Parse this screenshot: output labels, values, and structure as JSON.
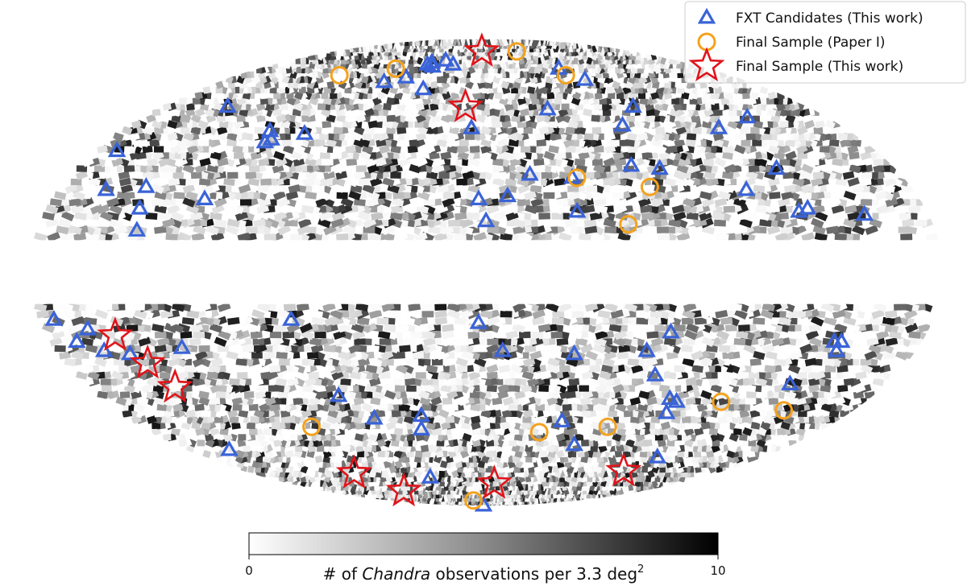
{
  "chart_data": {
    "type": "scatter",
    "projection": "Mollweide all-sky (Galactic coordinates), galactic plane |b|<10 deg masked",
    "x_axis": "Galactic longitude l (deg), 180 at left edge to -180 at right edge, 0 at center",
    "y_axis": "Galactic latitude b (deg), -90 to 90",
    "background_map": {
      "description": "grayscale HEALPix density map of Chandra observations",
      "colorbar": {
        "min": 0,
        "max": 10,
        "tick_labels": [
          "0",
          "10"
        ],
        "label_prefix": "# of ",
        "label_italic": "Chandra",
        "label_suffix": " observations per 3.3 deg",
        "label_superscript": "2",
        "colormap": "Greys"
      }
    },
    "legend": {
      "position": "top-right",
      "entries": [
        {
          "key": "fxt",
          "label": "FXT Candidates (This work)",
          "marker": "triangle",
          "color": "#3a63d8"
        },
        {
          "key": "paper1",
          "label": "Final Sample (Paper I)",
          "marker": "circle",
          "color": "#f4a21c"
        },
        {
          "key": "thiswork",
          "label": "Final Sample (This work)",
          "marker": "star",
          "color": "#e0141a"
        }
      ]
    },
    "series": [
      {
        "name": "FXT Candidates (This work)",
        "marker": "triangle",
        "color": "#3a63d8",
        "points": [
          {
            "l": 142,
            "b": 55
          },
          {
            "l": 168,
            "b": 39
          },
          {
            "l": 158,
            "b": 26
          },
          {
            "l": 142,
            "b": 27
          },
          {
            "l": 140,
            "b": 20
          },
          {
            "l": 138,
            "b": 13
          },
          {
            "l": 115,
            "b": 23
          },
          {
            "l": 105,
            "b": 46
          },
          {
            "l": 103,
            "b": 42
          },
          {
            "l": 101,
            "b": 43
          },
          {
            "l": 87,
            "b": 45
          },
          {
            "l": 67,
            "b": 65
          },
          {
            "l": 55,
            "b": 67
          },
          {
            "l": 48,
            "b": 73
          },
          {
            "l": 46,
            "b": 74
          },
          {
            "l": 42,
            "b": 72
          },
          {
            "l": 35,
            "b": 75
          },
          {
            "l": 38,
            "b": 62
          },
          {
            "l": 26,
            "b": 73
          },
          {
            "l": 6,
            "b": 47
          },
          {
            "l": 2,
            "b": 23
          },
          {
            "l": -1,
            "b": 16
          },
          {
            "l": -20,
            "b": 31
          },
          {
            "l": -10,
            "b": 24
          },
          {
            "l": -35,
            "b": 54
          },
          {
            "l": -38,
            "b": 30
          },
          {
            "l": -38,
            "b": 19
          },
          {
            "l": -60,
            "b": 71
          },
          {
            "l": -70,
            "b": 48
          },
          {
            "l": -65,
            "b": 34
          },
          {
            "l": -77,
            "b": 33
          },
          {
            "l": -70,
            "b": 66
          },
          {
            "l": -83,
            "b": 55
          },
          {
            "l": -117,
            "b": 47
          },
          {
            "l": -110,
            "b": 26
          },
          {
            "l": -128,
            "b": 19
          },
          {
            "l": -128,
            "b": 33
          },
          {
            "l": -154,
            "b": 18
          },
          {
            "l": -138,
            "b": 51
          },
          {
            "l": -132,
            "b": 20
          },
          {
            "l": 172,
            "b": -15
          },
          {
            "l": 167,
            "b": -22
          },
          {
            "l": 158,
            "b": -25
          },
          {
            "l": 148,
            "b": -26
          },
          {
            "l": 160,
            "b": -18
          },
          {
            "l": 125,
            "b": -24
          },
          {
            "l": 77,
            "b": -15
          },
          {
            "l": 67,
            "b": -40
          },
          {
            "l": 55,
            "b": -48
          },
          {
            "l": 33,
            "b": -52
          },
          {
            "l": 2,
            "b": -16
          },
          {
            "l": -8,
            "b": -25
          },
          {
            "l": 44,
            "b": -72
          },
          {
            "l": 14,
            "b": -90
          },
          {
            "l": -40,
            "b": -49
          },
          {
            "l": -38,
            "b": -26
          },
          {
            "l": -53,
            "b": -58
          },
          {
            "l": -75,
            "b": -33
          },
          {
            "l": -68,
            "b": -25
          },
          {
            "l": -76,
            "b": -19
          },
          {
            "l": -87,
            "b": -41
          },
          {
            "l": -91,
            "b": -42
          },
          {
            "l": -90,
            "b": -46
          },
          {
            "l": -112,
            "b": -63
          },
          {
            "l": -147,
            "b": -22
          },
          {
            "l": -147,
            "b": -25
          },
          {
            "l": -144,
            "b": -22
          },
          {
            "l": -137,
            "b": -36
          },
          {
            "l": 154,
            "b": -60
          },
          {
            "l": 31,
            "b": -47
          }
        ]
      },
      {
        "name": "Final Sample (Paper I)",
        "marker": "circle",
        "color": "#f4a21c",
        "points": [
          {
            "l": 105,
            "b": 68
          },
          {
            "l": 70,
            "b": 71
          },
          {
            "l": -40,
            "b": 80
          },
          {
            "l": -60,
            "b": 68
          },
          {
            "l": -40,
            "b": 30
          },
          {
            "l": -70,
            "b": 27
          },
          {
            "l": -58,
            "b": 15
          },
          {
            "l": -112,
            "b": -42
          },
          {
            "l": -146,
            "b": -45
          },
          {
            "l": 90,
            "b": -51
          },
          {
            "l": -30,
            "b": -53
          },
          {
            "l": -65,
            "b": -51
          },
          {
            "l": 19,
            "b": -85
          }
        ]
      },
      {
        "name": "Final Sample (This work)",
        "marker": "star",
        "color": "#e0141a",
        "points": [
          {
            "l": 2,
            "b": 80
          },
          {
            "l": 10,
            "b": 55
          },
          {
            "l": 143,
            "b": -29
          },
          {
            "l": 139,
            "b": -37
          },
          {
            "l": 150,
            "b": -20
          },
          {
            "l": -105,
            "b": -69
          },
          {
            "l": 90,
            "b": -79
          },
          {
            "l": -10,
            "b": -75
          },
          {
            "l": 100,
            "b": -70
          }
        ]
      }
    ]
  }
}
